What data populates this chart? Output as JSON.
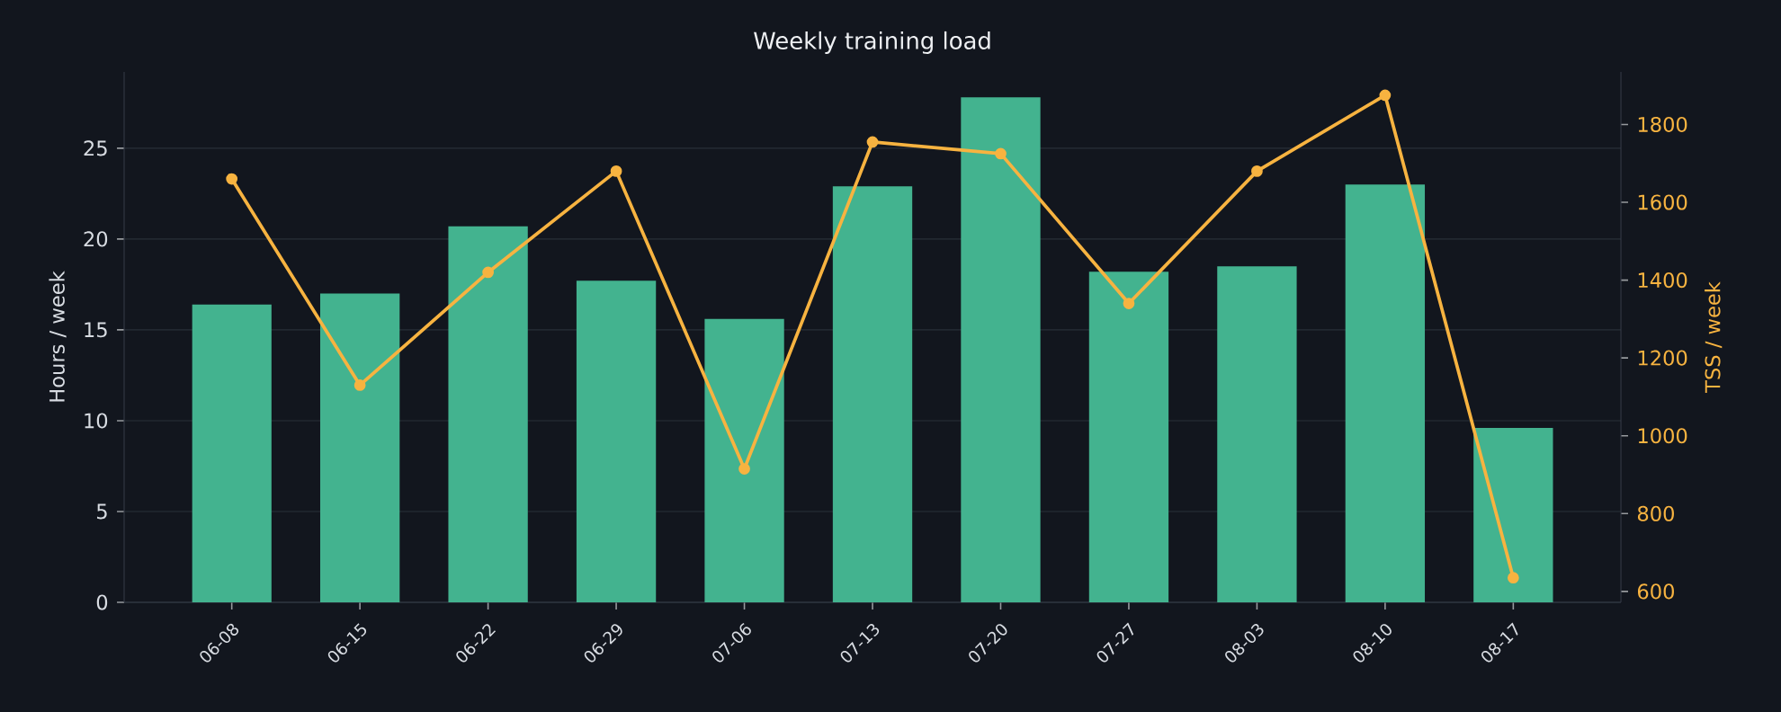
{
  "chart_data": {
    "type": "bar",
    "title": "Weekly training load",
    "categories": [
      "06-08",
      "06-15",
      "06-22",
      "06-29",
      "07-06",
      "07-13",
      "07-20",
      "07-27",
      "08-03",
      "08-10",
      "08-17"
    ],
    "series": [
      {
        "color": "#43b38f",
        "values": [
          16.4,
          17.0,
          20.7,
          17.7,
          15.6,
          22.9,
          27.8,
          18.2,
          18.5,
          23.0,
          9.6
        ]
      },
      {
        "type": "line",
        "axis": "y2",
        "color": "#f7b340",
        "marker": "circle",
        "line_style": "solid",
        "values": [
          1660,
          1130,
          1420,
          1680,
          915,
          1755,
          1725,
          1340,
          1680,
          1875,
          635
        ]
      }
    ],
    "ylabel": "Hours / week",
    "y2label": "TSS / week",
    "ylim": [
      0,
      29.2
    ],
    "yticks": [
      0,
      5,
      10,
      15,
      20,
      25
    ],
    "y2lim": [
      572,
      1935
    ],
    "y2ticks": [
      600,
      800,
      1000,
      1200,
      1400,
      1600,
      1800
    ],
    "grid": "y"
  }
}
